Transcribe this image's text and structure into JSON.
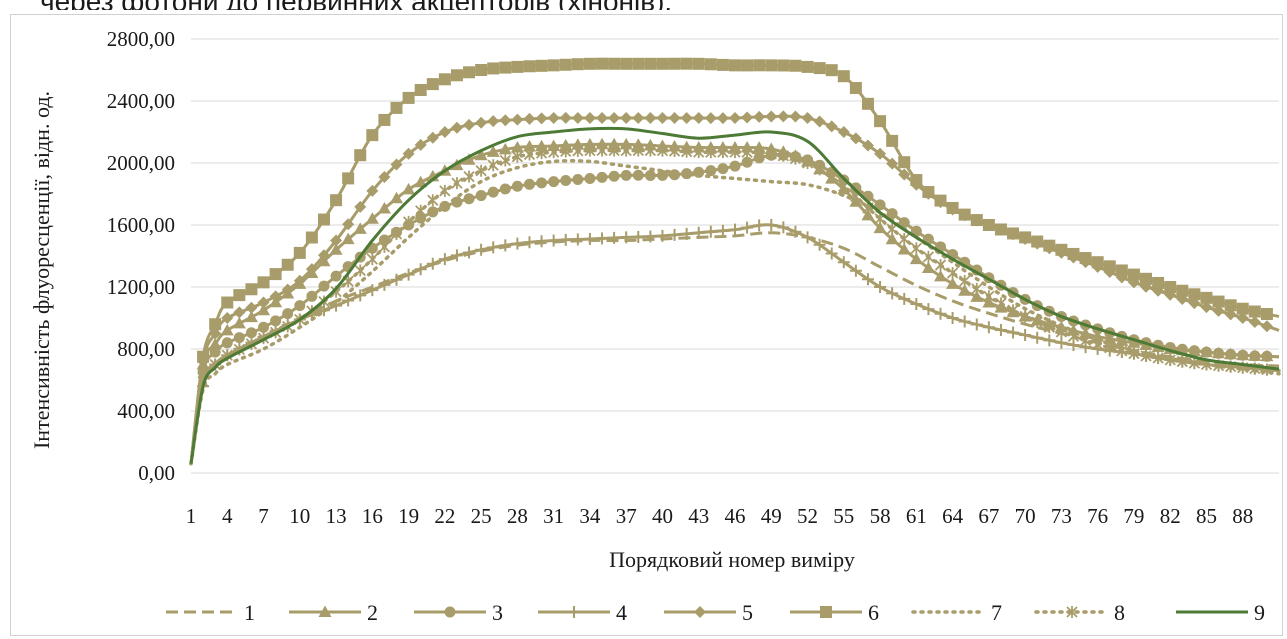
{
  "caption_fragment": "через фотони до первинних акцепторів (хінонів).",
  "chart_data": {
    "type": "line",
    "title": "",
    "xlabel": "Порядковий номер виміру",
    "ylabel": "Інтенсивність флуоресценції, відн. од.",
    "ylim": [
      0,
      2800
    ],
    "xlim": [
      1,
      91
    ],
    "yticks": [
      "0,00",
      "400,00",
      "800,00",
      "1200,00",
      "1600,00",
      "2000,00",
      "2400,00",
      "2800,00"
    ],
    "ytick_values": [
      0,
      400,
      800,
      1200,
      1600,
      2000,
      2400,
      2800
    ],
    "xticks": [
      "1",
      "4",
      "7",
      "10",
      "13",
      "16",
      "19",
      "22",
      "25",
      "28",
      "31",
      "34",
      "37",
      "40",
      "43",
      "46",
      "49",
      "52",
      "55",
      "58",
      "61",
      "64",
      "67",
      "70",
      "73",
      "76",
      "79",
      "82",
      "85",
      "88"
    ],
    "grid": "horizontal",
    "legend_position": "bottom",
    "colors": {
      "series_main": "#a89c6a",
      "series_dark": "#4d7a35",
      "grid": "#d9d9d9"
    },
    "series": [
      {
        "name": "1",
        "style": "dashed",
        "marker": "none",
        "x": [
          1,
          2,
          3,
          4,
          7,
          10,
          13,
          16,
          19,
          22,
          25,
          28,
          31,
          34,
          37,
          40,
          43,
          46,
          49,
          52,
          55,
          58,
          61,
          64,
          67,
          70,
          73,
          76,
          79,
          82,
          85,
          88,
          91
        ],
        "y": [
          60,
          600,
          700,
          760,
          880,
          1000,
          1110,
          1200,
          1290,
          1370,
          1430,
          1470,
          1490,
          1500,
          1500,
          1510,
          1520,
          1530,
          1550,
          1520,
          1450,
          1330,
          1210,
          1110,
          1030,
          960,
          900,
          840,
          790,
          750,
          720,
          700,
          690
        ]
      },
      {
        "name": "2",
        "style": "solid",
        "marker": "triangle",
        "x": [
          1,
          2,
          3,
          4,
          7,
          10,
          13,
          16,
          19,
          22,
          25,
          28,
          31,
          34,
          37,
          40,
          43,
          46,
          49,
          52,
          55,
          58,
          61,
          64,
          67,
          70,
          73,
          76,
          79,
          82,
          85,
          88,
          91
        ],
        "y": [
          60,
          700,
          830,
          920,
          1050,
          1220,
          1440,
          1640,
          1830,
          1950,
          2050,
          2100,
          2110,
          2120,
          2120,
          2110,
          2100,
          2100,
          2090,
          2010,
          1830,
          1580,
          1380,
          1220,
          1100,
          1010,
          940,
          880,
          840,
          800,
          780,
          760,
          750
        ]
      },
      {
        "name": "3",
        "style": "solid",
        "marker": "circle",
        "x": [
          1,
          2,
          3,
          4,
          7,
          10,
          13,
          16,
          19,
          22,
          25,
          28,
          31,
          34,
          37,
          40,
          43,
          46,
          49,
          52,
          55,
          58,
          61,
          64,
          67,
          70,
          73,
          76,
          79,
          82,
          85,
          88,
          91
        ],
        "y": [
          60,
          650,
          780,
          840,
          940,
          1080,
          1270,
          1450,
          1600,
          1720,
          1790,
          1850,
          1880,
          1900,
          1920,
          1920,
          1940,
          1980,
          2050,
          2020,
          1890,
          1730,
          1560,
          1410,
          1260,
          1120,
          1010,
          930,
          860,
          810,
          780,
          760,
          750
        ]
      },
      {
        "name": "4",
        "style": "solid",
        "marker": "plus",
        "x": [
          1,
          2,
          3,
          4,
          7,
          10,
          13,
          16,
          19,
          22,
          25,
          28,
          31,
          34,
          37,
          40,
          43,
          46,
          49,
          52,
          55,
          58,
          61,
          64,
          67,
          70,
          73,
          76,
          79,
          82,
          85,
          88,
          91
        ],
        "y": [
          60,
          560,
          700,
          760,
          880,
          990,
          1080,
          1180,
          1280,
          1380,
          1440,
          1480,
          1500,
          1510,
          1520,
          1530,
          1550,
          1570,
          1600,
          1520,
          1360,
          1200,
          1090,
          1000,
          940,
          890,
          840,
          800,
          770,
          730,
          700,
          680,
          660
        ]
      },
      {
        "name": "5",
        "style": "solid",
        "marker": "diamond",
        "x": [
          1,
          2,
          3,
          4,
          7,
          10,
          13,
          16,
          19,
          22,
          25,
          28,
          31,
          34,
          37,
          40,
          43,
          46,
          49,
          52,
          55,
          58,
          61,
          64,
          67,
          70,
          73,
          76,
          79,
          82,
          85,
          88,
          91
        ],
        "y": [
          60,
          720,
          900,
          1000,
          1100,
          1240,
          1500,
          1820,
          2060,
          2200,
          2260,
          2280,
          2290,
          2290,
          2290,
          2290,
          2290,
          2290,
          2300,
          2290,
          2200,
          2060,
          1860,
          1700,
          1600,
          1510,
          1420,
          1330,
          1230,
          1150,
          1070,
          1000,
          920
        ]
      },
      {
        "name": "6",
        "style": "solid",
        "marker": "square",
        "x": [
          1,
          2,
          3,
          4,
          7,
          10,
          13,
          16,
          19,
          22,
          25,
          28,
          31,
          34,
          37,
          40,
          43,
          46,
          49,
          52,
          55,
          58,
          61,
          64,
          67,
          70,
          73,
          76,
          79,
          82,
          85,
          88,
          91
        ],
        "y": [
          60,
          750,
          960,
          1100,
          1230,
          1420,
          1760,
          2180,
          2420,
          2540,
          2600,
          2620,
          2630,
          2640,
          2640,
          2640,
          2640,
          2630,
          2630,
          2620,
          2560,
          2270,
          1890,
          1710,
          1600,
          1520,
          1440,
          1360,
          1280,
          1200,
          1130,
          1060,
          1010
        ]
      },
      {
        "name": "7",
        "style": "dotted",
        "marker": "none",
        "x": [
          1,
          2,
          3,
          4,
          7,
          10,
          13,
          16,
          19,
          22,
          25,
          28,
          31,
          34,
          37,
          40,
          43,
          46,
          49,
          52,
          55,
          58,
          61,
          64,
          67,
          70,
          73,
          76,
          79,
          82,
          85,
          88,
          91
        ],
        "y": [
          60,
          540,
          640,
          700,
          800,
          940,
          1100,
          1300,
          1520,
          1720,
          1880,
          1970,
          2010,
          2010,
          1980,
          1950,
          1920,
          1900,
          1880,
          1860,
          1790,
          1680,
          1520,
          1360,
          1200,
          1060,
          950,
          860,
          790,
          740,
          700,
          670,
          640
        ]
      },
      {
        "name": "8",
        "style": "dotted",
        "marker": "asterisk",
        "x": [
          1,
          2,
          3,
          4,
          7,
          10,
          13,
          16,
          19,
          22,
          25,
          28,
          31,
          34,
          37,
          40,
          43,
          46,
          49,
          52,
          55,
          58,
          61,
          64,
          67,
          70,
          73,
          76,
          79,
          82,
          85,
          88,
          91
        ],
        "y": [
          60,
          590,
          700,
          760,
          870,
          990,
          1170,
          1380,
          1620,
          1820,
          1950,
          2040,
          2070,
          2080,
          2080,
          2080,
          2070,
          2070,
          2060,
          2000,
          1850,
          1640,
          1450,
          1290,
          1140,
          1010,
          910,
          830,
          770,
          730,
          700,
          680,
          660
        ]
      },
      {
        "name": "9",
        "style": "solid-dark",
        "marker": "none",
        "x": [
          1,
          2,
          3,
          4,
          7,
          10,
          13,
          16,
          19,
          22,
          25,
          28,
          31,
          34,
          37,
          40,
          43,
          46,
          49,
          52,
          55,
          58,
          61,
          64,
          67,
          70,
          73,
          76,
          79,
          82,
          85,
          88,
          91
        ],
        "y": [
          60,
          560,
          680,
          740,
          860,
          990,
          1190,
          1500,
          1760,
          1950,
          2080,
          2170,
          2200,
          2220,
          2220,
          2190,
          2160,
          2180,
          2200,
          2140,
          1900,
          1680,
          1520,
          1380,
          1250,
          1120,
          1010,
          930,
          860,
          790,
          730,
          700,
          670
        ]
      }
    ]
  }
}
